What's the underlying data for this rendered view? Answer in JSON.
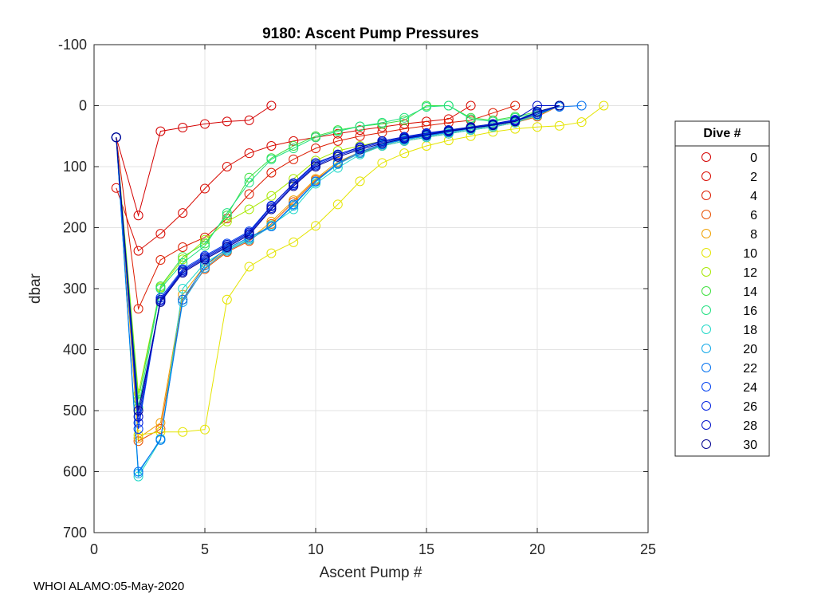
{
  "footer": "WHOI ALAMO:05-May-2020",
  "chart_data": {
    "type": "line",
    "title": "9180: Ascent Pump Pressures",
    "xlabel": "Ascent Pump #",
    "ylabel": "dbar",
    "xlim": [
      0,
      25
    ],
    "ylim": [
      -100,
      700
    ],
    "y_reversed": true,
    "xticks": [
      0,
      5,
      10,
      15,
      20,
      25
    ],
    "yticks": [
      -100,
      0,
      100,
      200,
      300,
      400,
      500,
      600,
      700
    ],
    "grid": true,
    "legend_title": "Dive #",
    "legend_position": "outside-right",
    "series": [
      {
        "name": "0",
        "color": "#d40000",
        "x": [
          1,
          2,
          3,
          4,
          5,
          6,
          7,
          8
        ],
        "y": [
          52,
          180,
          42,
          36,
          30,
          26,
          24,
          0
        ]
      },
      {
        "name": "2",
        "color": "#d80a00",
        "x": [
          1,
          2,
          3,
          4,
          5,
          6,
          7,
          8,
          9,
          10,
          11,
          12,
          13,
          14,
          15,
          16,
          17
        ],
        "y": [
          135,
          238,
          210,
          176,
          136,
          100,
          78,
          66,
          58,
          52,
          46,
          40,
          35,
          30,
          26,
          22,
          0
        ]
      },
      {
        "name": "4",
        "color": "#dc1c00",
        "x": [
          1,
          2,
          3,
          4,
          5,
          6,
          7,
          8,
          9,
          10,
          11,
          12,
          13,
          14,
          15,
          16,
          17,
          18,
          19
        ],
        "y": [
          52,
          333,
          253,
          232,
          216,
          185,
          145,
          110,
          88,
          70,
          58,
          50,
          44,
          38,
          33,
          28,
          24,
          12,
          0
        ]
      },
      {
        "name": "6",
        "color": "#e85000",
        "x": [
          1,
          2,
          3,
          4,
          5,
          6,
          7,
          8,
          9,
          10,
          11,
          12,
          13,
          14,
          15,
          16,
          17,
          18,
          19,
          20,
          21
        ],
        "y": [
          52,
          550,
          530,
          318,
          268,
          240,
          222,
          194,
          158,
          122,
          95,
          78,
          66,
          58,
          52,
          46,
          40,
          35,
          28,
          18,
          0
        ]
      },
      {
        "name": "8",
        "color": "#f0a000",
        "x": [
          1,
          2,
          3,
          4,
          5,
          6,
          7,
          8,
          9,
          10,
          11,
          12,
          13,
          14,
          15,
          16,
          17,
          18,
          19,
          20,
          21
        ],
        "y": [
          52,
          545,
          520,
          310,
          262,
          238,
          220,
          190,
          155,
          120,
          92,
          76,
          64,
          56,
          50,
          44,
          38,
          33,
          26,
          16,
          0
        ]
      },
      {
        "name": "10",
        "color": "#e4e400",
        "x": [
          1,
          2,
          3,
          4,
          5,
          6,
          7,
          8,
          9,
          10,
          11,
          12,
          13,
          14,
          15,
          16,
          17,
          18,
          19,
          20,
          21,
          22,
          23
        ],
        "y": [
          52,
          540,
          535,
          535,
          531,
          318,
          264,
          242,
          224,
          197,
          162,
          124,
          94,
          78,
          66,
          57,
          50,
          43,
          38,
          35,
          33,
          27,
          0
        ]
      },
      {
        "name": "12",
        "color": "#a8e800",
        "x": [
          1,
          2,
          3,
          4,
          5,
          6,
          7,
          8,
          9,
          10,
          11,
          12,
          13,
          14,
          15,
          16,
          17,
          18,
          19,
          20,
          21
        ],
        "y": [
          52,
          472,
          298,
          252,
          220,
          190,
          170,
          148,
          120,
          90,
          74,
          66,
          58,
          52,
          46,
          40,
          35,
          30,
          24,
          14,
          0
        ]
      },
      {
        "name": "14",
        "color": "#40e040",
        "x": [
          1,
          2,
          3,
          4,
          5,
          6,
          7,
          8,
          9,
          10,
          11,
          12,
          13,
          14,
          15,
          16,
          17,
          18,
          19,
          20,
          21
        ],
        "y": [
          52,
          482,
          296,
          248,
          226,
          180,
          118,
          86,
          66,
          50,
          40,
          34,
          30,
          24,
          0,
          0,
          20,
          24,
          18,
          10,
          0
        ]
      },
      {
        "name": "16",
        "color": "#20e080",
        "x": [
          1,
          2,
          3,
          4,
          5,
          6,
          7,
          8,
          9,
          10,
          11,
          12,
          13,
          14,
          15,
          16,
          17,
          18,
          19,
          20,
          21
        ],
        "y": [
          52,
          495,
          300,
          258,
          230,
          176,
          126,
          88,
          70,
          52,
          42,
          34,
          28,
          20,
          2,
          0,
          22,
          26,
          20,
          12,
          0
        ]
      },
      {
        "name": "18",
        "color": "#20d8c8",
        "x": [
          1,
          2,
          3,
          4,
          5,
          6,
          7,
          8,
          9,
          10,
          11,
          12,
          13,
          14,
          15,
          16,
          17,
          18,
          19,
          20,
          21
        ],
        "y": [
          52,
          608,
          548,
          300,
          258,
          236,
          218,
          196,
          170,
          128,
          102,
          80,
          66,
          58,
          52,
          46,
          40,
          35,
          28,
          16,
          0
        ]
      },
      {
        "name": "20",
        "color": "#10a8e8",
        "x": [
          1,
          2,
          3,
          4,
          5,
          6,
          7,
          8,
          9,
          10,
          11,
          12,
          13,
          14,
          15,
          16,
          17,
          18,
          19,
          20,
          21
        ],
        "y": [
          52,
          603,
          546,
          322,
          266,
          238,
          220,
          198,
          164,
          125,
          96,
          78,
          64,
          56,
          50,
          44,
          38,
          33,
          26,
          14,
          0
        ]
      },
      {
        "name": "22",
        "color": "#0070f0",
        "x": [
          1,
          2,
          3,
          4,
          5,
          6,
          7,
          8,
          9,
          10,
          11,
          12,
          13,
          14,
          15,
          16,
          17,
          18,
          19,
          20,
          21,
          22
        ],
        "y": [
          52,
          600,
          548,
          318,
          262,
          234,
          216,
          198,
          162,
          124,
          94,
          76,
          63,
          55,
          49,
          43,
          37,
          32,
          25,
          10,
          2,
          0
        ]
      },
      {
        "name": "24",
        "color": "#0040f0",
        "x": [
          1,
          2,
          3,
          4,
          5,
          6,
          7,
          8,
          9,
          10,
          11,
          12,
          13,
          14,
          15,
          16,
          17,
          18,
          19,
          20,
          21
        ],
        "y": [
          52,
          530,
          315,
          268,
          246,
          226,
          206,
          164,
          128,
          96,
          80,
          68,
          58,
          52,
          46,
          40,
          36,
          30,
          24,
          12,
          0
        ]
      },
      {
        "name": "26",
        "color": "#0020e0",
        "x": [
          1,
          2,
          3,
          4,
          5,
          6,
          7,
          8,
          9,
          10,
          11,
          12,
          13,
          14,
          15,
          16,
          17,
          18,
          19,
          20,
          21
        ],
        "y": [
          52,
          520,
          320,
          272,
          250,
          230,
          210,
          168,
          130,
          98,
          82,
          70,
          60,
          53,
          47,
          41,
          36,
          31,
          25,
          14,
          0
        ]
      },
      {
        "name": "28",
        "color": "#0010c8",
        "x": [
          1,
          2,
          3,
          4,
          5,
          6,
          7,
          8,
          9,
          10,
          11,
          12,
          13,
          14,
          15,
          16,
          17,
          18,
          19,
          20,
          21
        ],
        "y": [
          52,
          510,
          318,
          270,
          248,
          228,
          208,
          165,
          127,
          94,
          80,
          68,
          58,
          51,
          45,
          40,
          35,
          30,
          23,
          0,
          0
        ]
      },
      {
        "name": "30",
        "color": "#000090",
        "x": [
          1,
          2,
          3,
          4,
          5,
          6,
          7,
          8,
          9,
          10,
          11,
          12,
          13,
          14,
          15,
          16,
          17,
          18,
          19,
          20,
          21
        ],
        "y": [
          52,
          500,
          322,
          274,
          252,
          232,
          212,
          170,
          132,
          100,
          84,
          72,
          62,
          54,
          48,
          42,
          37,
          32,
          26,
          10,
          0
        ]
      }
    ]
  }
}
